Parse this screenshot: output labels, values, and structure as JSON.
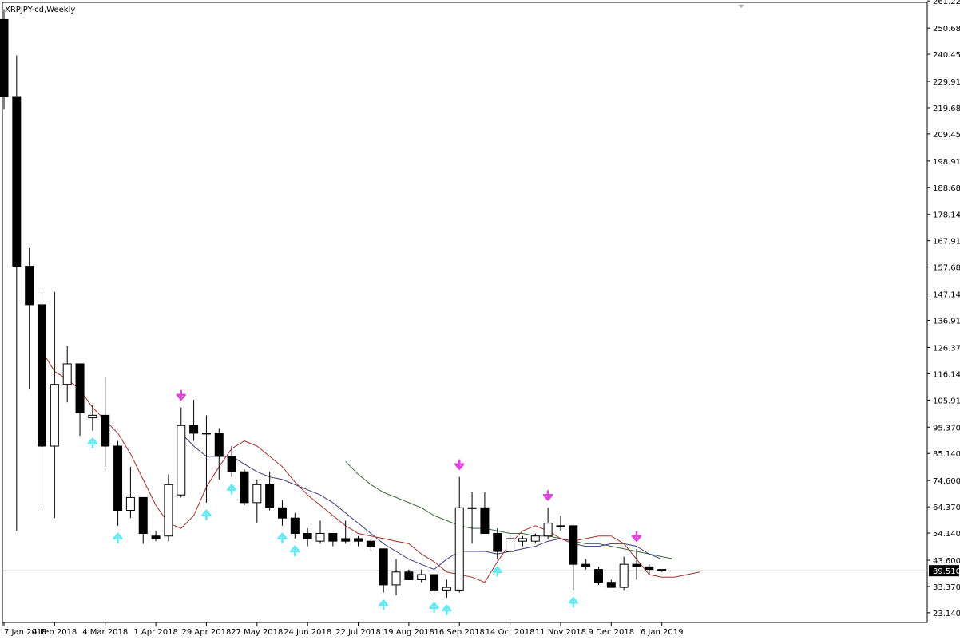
{
  "window": {
    "title": "XRPJPY-cd,Weekly"
  },
  "current_price": "39.510",
  "colors": {
    "background": "#ffffff",
    "candle": "#000000",
    "ma_fast": "#a0312c",
    "ma_mid": "#3c3a80",
    "ma_slow": "#3f6b3c",
    "fractal_up": "#66e8f0",
    "fractal_down": "#dd44dd",
    "price_line": "#c0c0c0"
  },
  "chart_data": {
    "type": "candlestick",
    "title": "XRPJPY-cd,Weekly",
    "symbol": "XRPJPY-cd",
    "timeframe": "Weekly",
    "ylim": [
      20,
      265
    ],
    "grid": false,
    "y_ticks": [
      261.22,
      250.68,
      240.45,
      229.91,
      219.68,
      209.45,
      198.91,
      188.68,
      178.14,
      167.91,
      157.68,
      147.14,
      136.91,
      126.37,
      116.14,
      105.91,
      95.37,
      85.14,
      74.6,
      64.37,
      54.14,
      43.6,
      33.37,
      23.14
    ],
    "y_tick_labels": [
      "261.220",
      "250.680",
      "240.450",
      "229.910",
      "219.680",
      "209.450",
      "198.910",
      "188.680",
      "178.140",
      "167.910",
      "157.680",
      "147.140",
      "136.910",
      "126.370",
      "116.140",
      "105.910",
      "95.370",
      "85.140",
      "74.600",
      "64.370",
      "54.140",
      "43.600",
      "33.370",
      "23.140"
    ],
    "x_tick_labels": [
      {
        "index": 0,
        "label": "7 Jan 2018"
      },
      {
        "index": 4,
        "label": "4 Feb 2018"
      },
      {
        "index": 8,
        "label": "4 Mar 2018"
      },
      {
        "index": 12,
        "label": "1 Apr 2018"
      },
      {
        "index": 16,
        "label": "29 Apr 2018"
      },
      {
        "index": 20,
        "label": "27 May 2018"
      },
      {
        "index": 24,
        "label": "24 Jun 2018"
      },
      {
        "index": 28,
        "label": "22 Jul 2018"
      },
      {
        "index": 32,
        "label": "19 Aug 2018"
      },
      {
        "index": 36,
        "label": "16 Sep 2018"
      },
      {
        "index": 40,
        "label": "14 Oct 2018"
      },
      {
        "index": 44,
        "label": "11 Nov 2018"
      },
      {
        "index": 48,
        "label": "9 Dec 2018"
      },
      {
        "index": 52,
        "label": "6 Jan 2019"
      }
    ],
    "candles": [
      [
        254,
        258,
        219,
        224
      ],
      [
        224,
        240,
        55,
        158
      ],
      [
        158,
        165,
        110,
        143
      ],
      [
        143,
        148,
        65,
        88
      ],
      [
        88,
        148,
        60,
        112
      ],
      [
        112,
        127,
        105,
        120
      ],
      [
        120,
        120,
        92,
        101
      ],
      [
        99,
        104,
        94,
        100
      ],
      [
        100,
        115,
        80,
        88
      ],
      [
        88,
        90,
        57,
        63
      ],
      [
        63,
        80,
        60,
        68
      ],
      [
        68,
        68,
        50,
        54
      ],
      [
        53,
        55,
        51,
        52
      ],
      [
        53,
        77,
        51,
        73
      ],
      [
        69,
        103,
        68,
        96
      ],
      [
        96,
        106,
        90,
        93
      ],
      [
        93,
        100,
        66,
        93
      ],
      [
        93,
        95,
        75,
        84
      ],
      [
        84,
        88,
        76,
        78
      ],
      [
        78,
        79,
        65,
        66
      ],
      [
        66,
        75,
        58,
        73
      ],
      [
        73,
        78,
        63,
        64
      ],
      [
        64,
        67,
        57,
        60
      ],
      [
        60,
        62,
        52,
        54
      ],
      [
        54,
        56,
        49,
        52
      ],
      [
        51,
        59,
        50,
        54
      ],
      [
        54,
        54,
        49,
        51
      ],
      [
        52,
        59,
        50,
        51
      ],
      [
        52,
        53,
        49,
        51
      ],
      [
        51,
        52,
        47,
        49
      ],
      [
        48,
        48,
        31,
        34
      ],
      [
        34,
        44,
        30,
        39
      ],
      [
        39,
        40,
        36,
        36
      ],
      [
        36,
        40,
        35,
        38
      ],
      [
        38,
        38,
        30,
        32
      ],
      [
        32,
        36,
        29,
        33
      ],
      [
        32,
        76,
        31,
        64
      ],
      [
        64,
        70,
        50,
        64
      ],
      [
        64,
        70,
        55,
        54
      ],
      [
        54,
        56,
        44,
        47
      ],
      [
        47,
        53,
        46,
        52
      ],
      [
        51,
        53,
        49,
        52
      ],
      [
        51,
        54,
        50,
        53
      ],
      [
        53,
        64,
        52,
        58
      ],
      [
        57,
        61,
        55,
        57
      ],
      [
        57,
        57,
        32,
        42
      ],
      [
        42,
        44,
        40,
        41
      ],
      [
        40,
        41,
        34,
        35
      ],
      [
        35,
        36,
        33,
        33
      ],
      [
        33,
        45,
        32,
        42
      ],
      [
        42,
        48,
        36,
        41
      ],
      [
        41,
        42,
        38,
        40
      ],
      [
        40,
        40,
        39,
        39.5
      ]
    ],
    "series": [
      {
        "key": "ma_fast",
        "start_index": 3,
        "values": [
          125,
          117,
          114,
          110,
          103,
          98,
          93,
          85,
          75,
          65,
          58,
          56,
          61,
          72,
          80,
          87,
          90,
          88,
          84,
          80,
          74,
          69,
          65,
          61,
          57,
          54,
          53,
          52,
          51,
          50,
          46,
          43,
          39,
          38,
          37,
          35,
          43,
          50,
          55,
          57,
          55,
          52,
          51,
          52,
          53,
          53,
          50,
          44,
          38,
          37,
          37,
          38,
          39
        ]
      },
      {
        "key": "ma_mid",
        "start_index": 14,
        "values": [
          93,
          88,
          84,
          84,
          84,
          81,
          78,
          76,
          75,
          73,
          71,
          69,
          66,
          62,
          58,
          54,
          50,
          47,
          44,
          42,
          40,
          44,
          47,
          47,
          47,
          46,
          47,
          48,
          49,
          51,
          52,
          50,
          49,
          49,
          50,
          50,
          49,
          46,
          44
        ]
      },
      {
        "key": "ma_slow",
        "start_index": 27,
        "values": [
          82,
          77,
          73,
          70,
          68,
          66,
          64,
          61,
          59,
          57,
          56,
          56,
          55,
          54,
          54,
          53,
          53,
          52,
          51,
          50,
          50,
          49,
          48,
          47,
          46,
          45,
          44
        ]
      }
    ],
    "fractals_up": [
      9,
      7,
      16,
      18,
      22,
      23,
      30,
      34,
      35,
      39,
      45
    ],
    "fractals_down": [
      14,
      36,
      43,
      50
    ]
  }
}
